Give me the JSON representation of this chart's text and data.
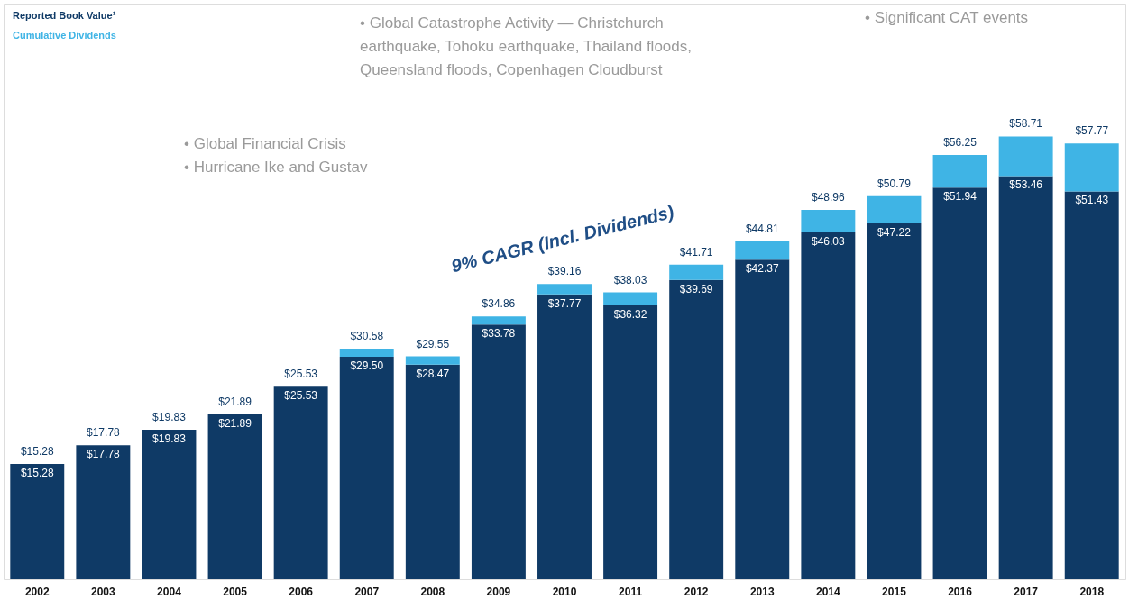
{
  "chart_data": {
    "type": "bar",
    "stacked": true,
    "legend": "top left",
    "categories": [
      "2002",
      "2003",
      "2004",
      "2005",
      "2006",
      "2007",
      "2008",
      "2009",
      "2010",
      "2011",
      "2012",
      "2013",
      "2014",
      "2015",
      "2016",
      "2017",
      "2018"
    ],
    "series": [
      {
        "name": "Reported Book Value¹",
        "color": "#0f3a66",
        "values": [
          15.28,
          17.78,
          19.83,
          21.89,
          25.53,
          29.5,
          28.47,
          33.78,
          37.77,
          36.32,
          39.69,
          42.37,
          46.03,
          47.22,
          51.94,
          53.46,
          51.43
        ],
        "value_labels": [
          "$15.28",
          "$17.78",
          "$19.83",
          "$21.89",
          "$25.53",
          "$29.50",
          "$28.47",
          "$33.78",
          "$37.77",
          "$36.32",
          "$39.69",
          "$42.37",
          "$46.03",
          "$47.22",
          "$51.94",
          "$53.46",
          "$51.43"
        ]
      },
      {
        "name": "Cumulative Dividends",
        "color": "#3fb4e5",
        "values": [
          0,
          0,
          0,
          0,
          0,
          1.08,
          1.08,
          1.08,
          1.39,
          1.71,
          2.02,
          2.44,
          2.93,
          3.57,
          4.31,
          5.25,
          6.34
        ]
      }
    ],
    "totals": [
      "$15.28",
      "$17.78",
      "$19.83",
      "$21.89",
      "$25.53",
      "$30.58",
      "$29.55",
      "$34.86",
      "$39.16",
      "$38.03",
      "$41.71",
      "$44.81",
      "$48.96",
      "$50.79",
      "$56.25",
      "$58.71",
      "$57.77"
    ],
    "annotations": [
      "• Global Financial Crisis\n• Hurricane Ike and Gustav",
      "• Global Catastrophe Activity — Christchurch\n  earthquake, Tohoku earthquake, Thailand floods,\n  Queensland floods, Copenhagen Cloudburst",
      "• Significant CAT events",
      "9% CAGR (Incl. Dividends)"
    ]
  }
}
